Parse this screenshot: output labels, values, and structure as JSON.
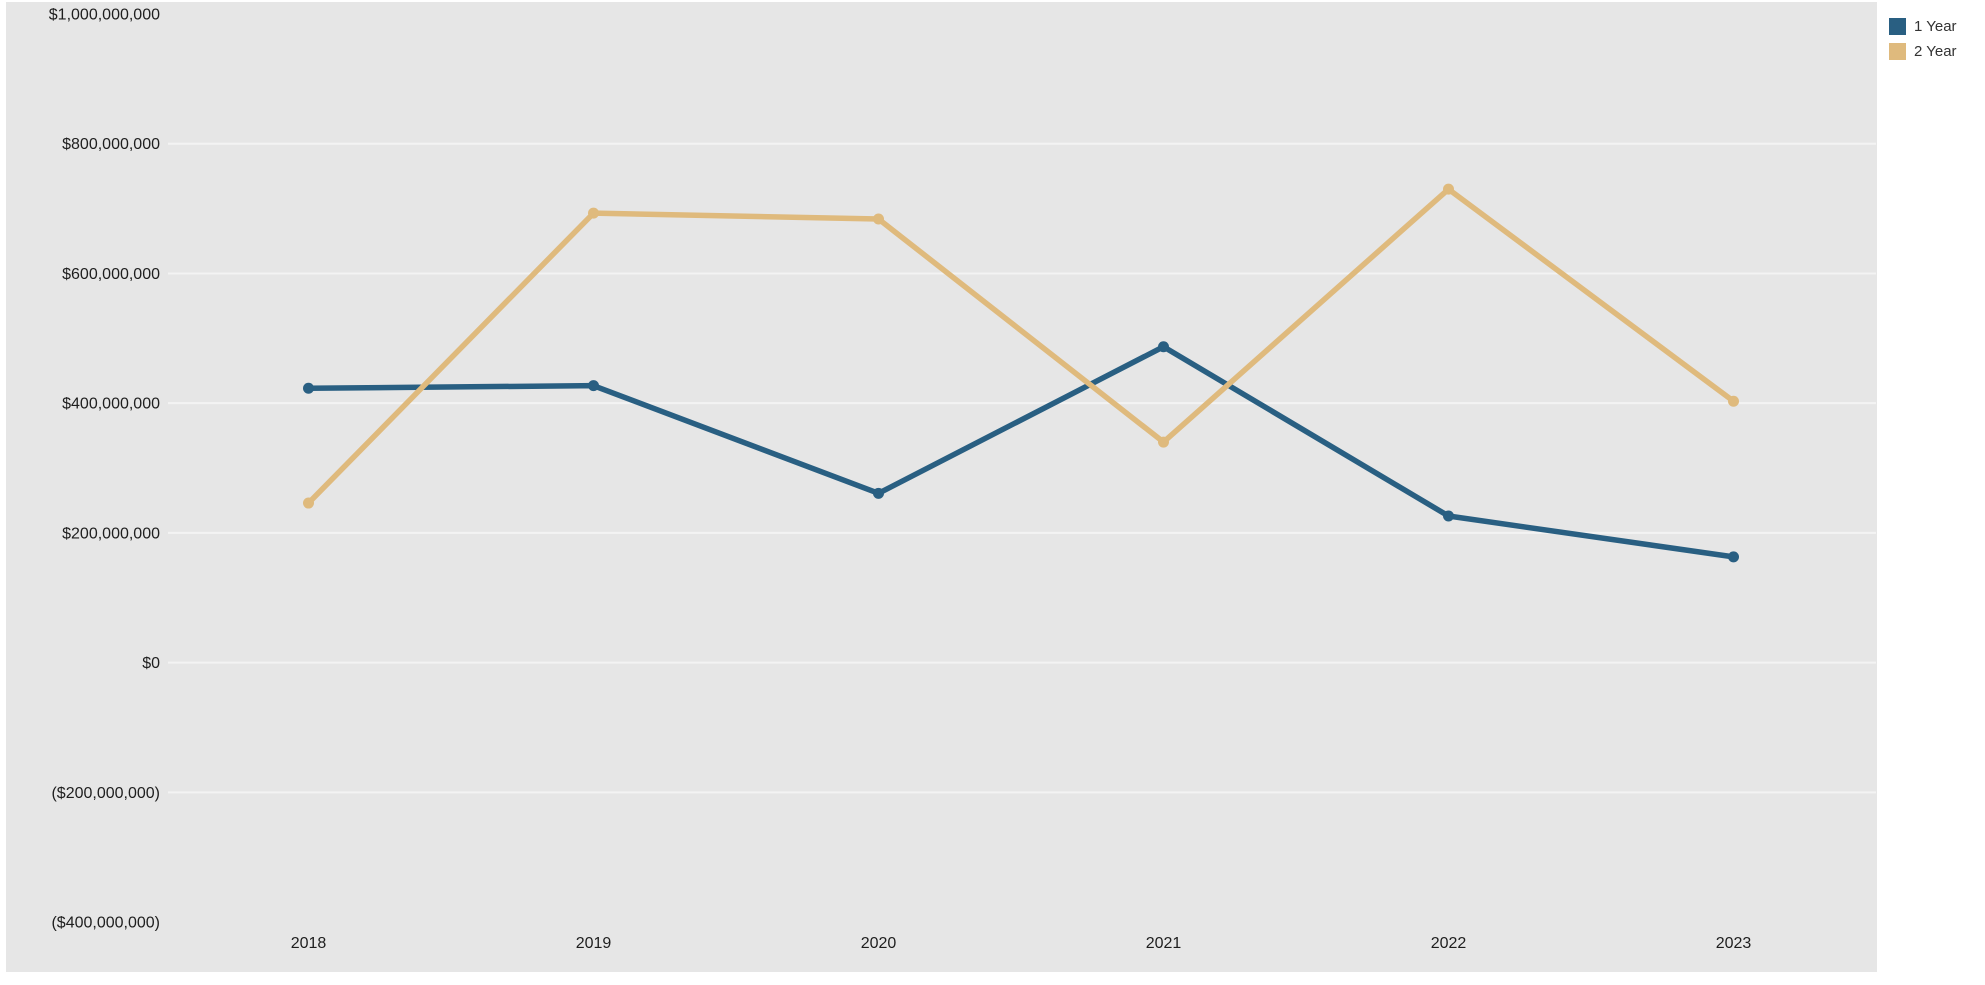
{
  "chart_data": {
    "type": "line",
    "categories": [
      "2018",
      "2019",
      "2020",
      "2021",
      "2022",
      "2023"
    ],
    "series": [
      {
        "name": "1 Year",
        "color": "#295f82",
        "values": [
          423000000,
          427000000,
          261000000,
          487000000,
          226000000,
          163000000
        ]
      },
      {
        "name": "2 Year",
        "color": "#dfba7d",
        "values": [
          246000000,
          693000000,
          684000000,
          340000000,
          730000000,
          403000000
        ]
      }
    ],
    "y_ticks": [
      {
        "label": "$1,000,000,000",
        "value": 1000000000
      },
      {
        "label": "$800,000,000",
        "value": 800000000
      },
      {
        "label": "$600,000,000",
        "value": 600000000
      },
      {
        "label": "$400,000,000",
        "value": 400000000
      },
      {
        "label": "$200,000,000",
        "value": 200000000
      },
      {
        "label": "$0",
        "value": 0
      },
      {
        "label": "($200,000,000)",
        "value": -200000000
      },
      {
        "label": "($400,000,000)",
        "value": -400000000
      }
    ],
    "grid_values": [
      800000000,
      600000000,
      400000000,
      200000000,
      0,
      -200000000
    ],
    "ylim": [
      -400000000,
      1000000000
    ],
    "title": "",
    "xlabel": "",
    "ylabel": "",
    "legend_position": "top-right",
    "plot_bg": "#e6e6e6",
    "grid_color": "#f3f3f3",
    "tick_text_color": "#1e1e1e"
  }
}
